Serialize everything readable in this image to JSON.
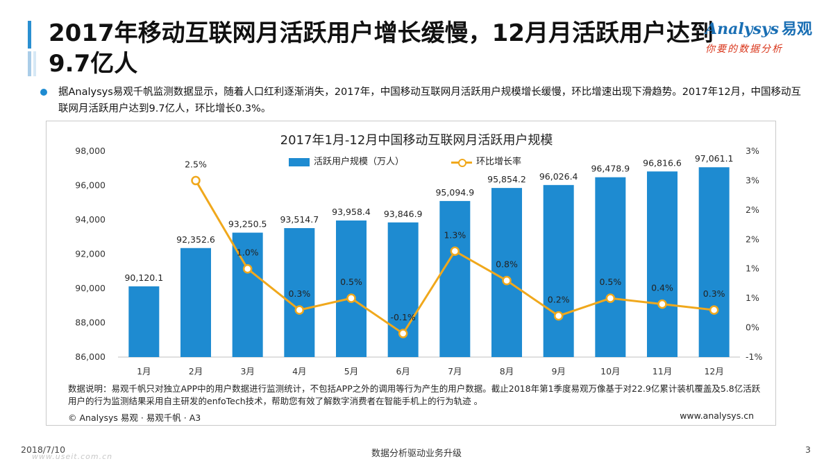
{
  "title": "2017年移动互联网月活跃用户增长缓慢，12月月活跃用户达到9.7亿人",
  "logo": {
    "brand": "Analysys",
    "brand_cn": "易观",
    "slogan": "你要的数据分析"
  },
  "summary": "据Analysys易观千帆监测数据显示，随着人口红利逐渐消失，2017年，中国移动互联网月活跃用户规模增长缓慢，环比增速出现下滑趋势。2017年12月，中国移动互联网月活跃用户达到9.7亿人，环比增长0.3%。",
  "colors": {
    "bar": "#1e8bd1",
    "line": "#f0a81c",
    "accent": "#2a8fd1"
  },
  "chart_data": {
    "type": "bar",
    "title": "2017年1月-12月中国移动互联网月活跃用户规模",
    "categories": [
      "1月",
      "2月",
      "3月",
      "4月",
      "5月",
      "6月",
      "7月",
      "8月",
      "9月",
      "10月",
      "11月",
      "12月"
    ],
    "series": [
      {
        "name": "活跃用户规模（万人）",
        "type": "bar",
        "axis": "left",
        "values": [
          90120.1,
          92352.6,
          93250.5,
          93514.7,
          93958.4,
          93846.9,
          95094.9,
          95854.2,
          96026.4,
          96478.9,
          96816.6,
          97061.1
        ],
        "labels": [
          "90,120.1",
          "92,352.6",
          "93,250.5",
          "93,514.7",
          "93,958.4",
          "93,846.9",
          "95,094.9",
          "95,854.2",
          "96,026.4",
          "96,478.9",
          "96,816.6",
          "97,061.1"
        ]
      },
      {
        "name": "环比增长率",
        "type": "line",
        "axis": "right",
        "values": [
          null,
          2.5,
          1.0,
          0.3,
          0.5,
          -0.1,
          1.3,
          0.8,
          0.2,
          0.5,
          0.4,
          0.3
        ],
        "labels": [
          "",
          "2.5%",
          "1.0%",
          "0.3%",
          "0.5%",
          "-0.1%",
          "1.3%",
          "0.8%",
          "0.2%",
          "0.5%",
          "0.4%",
          "0.3%"
        ]
      }
    ],
    "y_left": {
      "min": 86000,
      "max": 98000,
      "ticks": [
        "86,000",
        "88,000",
        "90,000",
        "92,000",
        "94,000",
        "96,000",
        "98,000"
      ]
    },
    "y_right": {
      "min": -0.5,
      "max": 3.0,
      "ticks": [
        "-1%",
        "0%",
        "1%",
        "1%",
        "2%",
        "2%",
        "3%",
        "3%"
      ]
    }
  },
  "footnote": "数据说明：易观千帆只对独立APP中的用户数据进行监测统计，不包括APP之外的调用等行为产生的用户数据。截止2018年第1季度易观万像基于对22.9亿累计装机覆盖及5.8亿活跃用户的行为监测结果采用自主研发的enfoTech技术，帮助您有效了解数字消费者在智能手机上的行为轨迹 。",
  "copyright": "© Analysys 易观 · 易观千帆 · A3",
  "website": "www.analysys.cn",
  "footer": {
    "date": "2018/7/10",
    "center": "数据分析驱动业务升级",
    "page": "3",
    "watermark": "www.useit.com.cn"
  }
}
